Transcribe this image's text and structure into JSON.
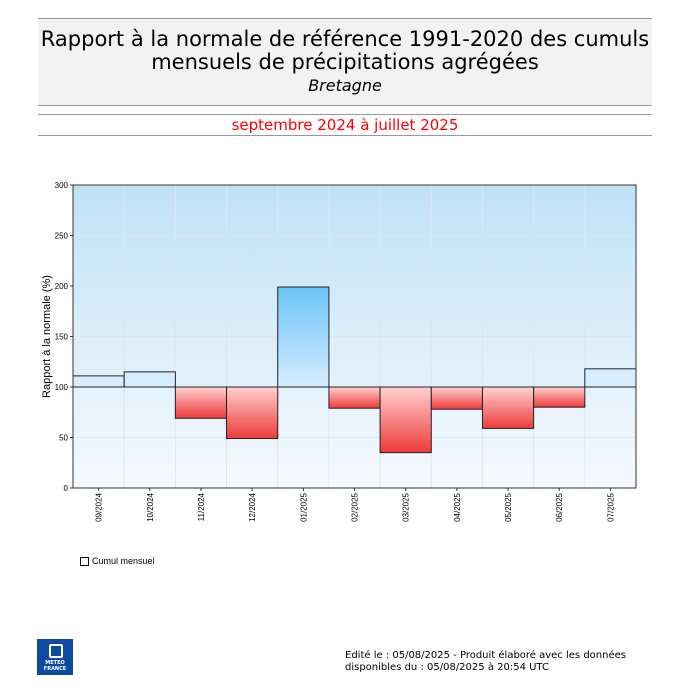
{
  "header": {
    "title_line1": "Rapport à la normale de référence 1991-2020 des cumuls",
    "title_line2": "mensuels de précipitations agrégées",
    "region": "Bretagne",
    "period": "septembre 2024 à juillet 2025"
  },
  "chart_data": {
    "type": "bar",
    "categories": [
      "09/2024",
      "10/2024",
      "11/2024",
      "12/2024",
      "01/2025",
      "02/2025",
      "03/2025",
      "04/2025",
      "05/2025",
      "06/2025",
      "07/2025"
    ],
    "series": [
      {
        "name": "Cumul mensuel",
        "values": [
          111,
          115,
          69,
          49,
          199,
          79,
          35,
          78,
          59,
          80,
          118
        ]
      }
    ],
    "baseline": 100,
    "ylabel": "Rapport à la normale (%)",
    "xlabel": "",
    "ylim": [
      0,
      300
    ],
    "yticks": [
      0,
      50,
      100,
      150,
      200,
      250,
      300
    ],
    "grid": true,
    "legend_position": "bottom-left",
    "colors": {
      "above_light": "#d6ecff",
      "above_dark": "#6cc4f8",
      "below_light": "#ffd0d0",
      "below_dark": "#ee3a3a",
      "background_top": "#bfe2f7",
      "background_bottom": "#f6f9fe"
    }
  },
  "legend": {
    "label": "Cumul mensuel"
  },
  "logo": {
    "line1": "METEO",
    "line2": "FRANCE"
  },
  "footer": {
    "line1": "Edité le : 05/08/2025 - Produit élaboré avec les données",
    "line2": "disponibles du : 05/08/2025 à 20:54 UTC"
  }
}
